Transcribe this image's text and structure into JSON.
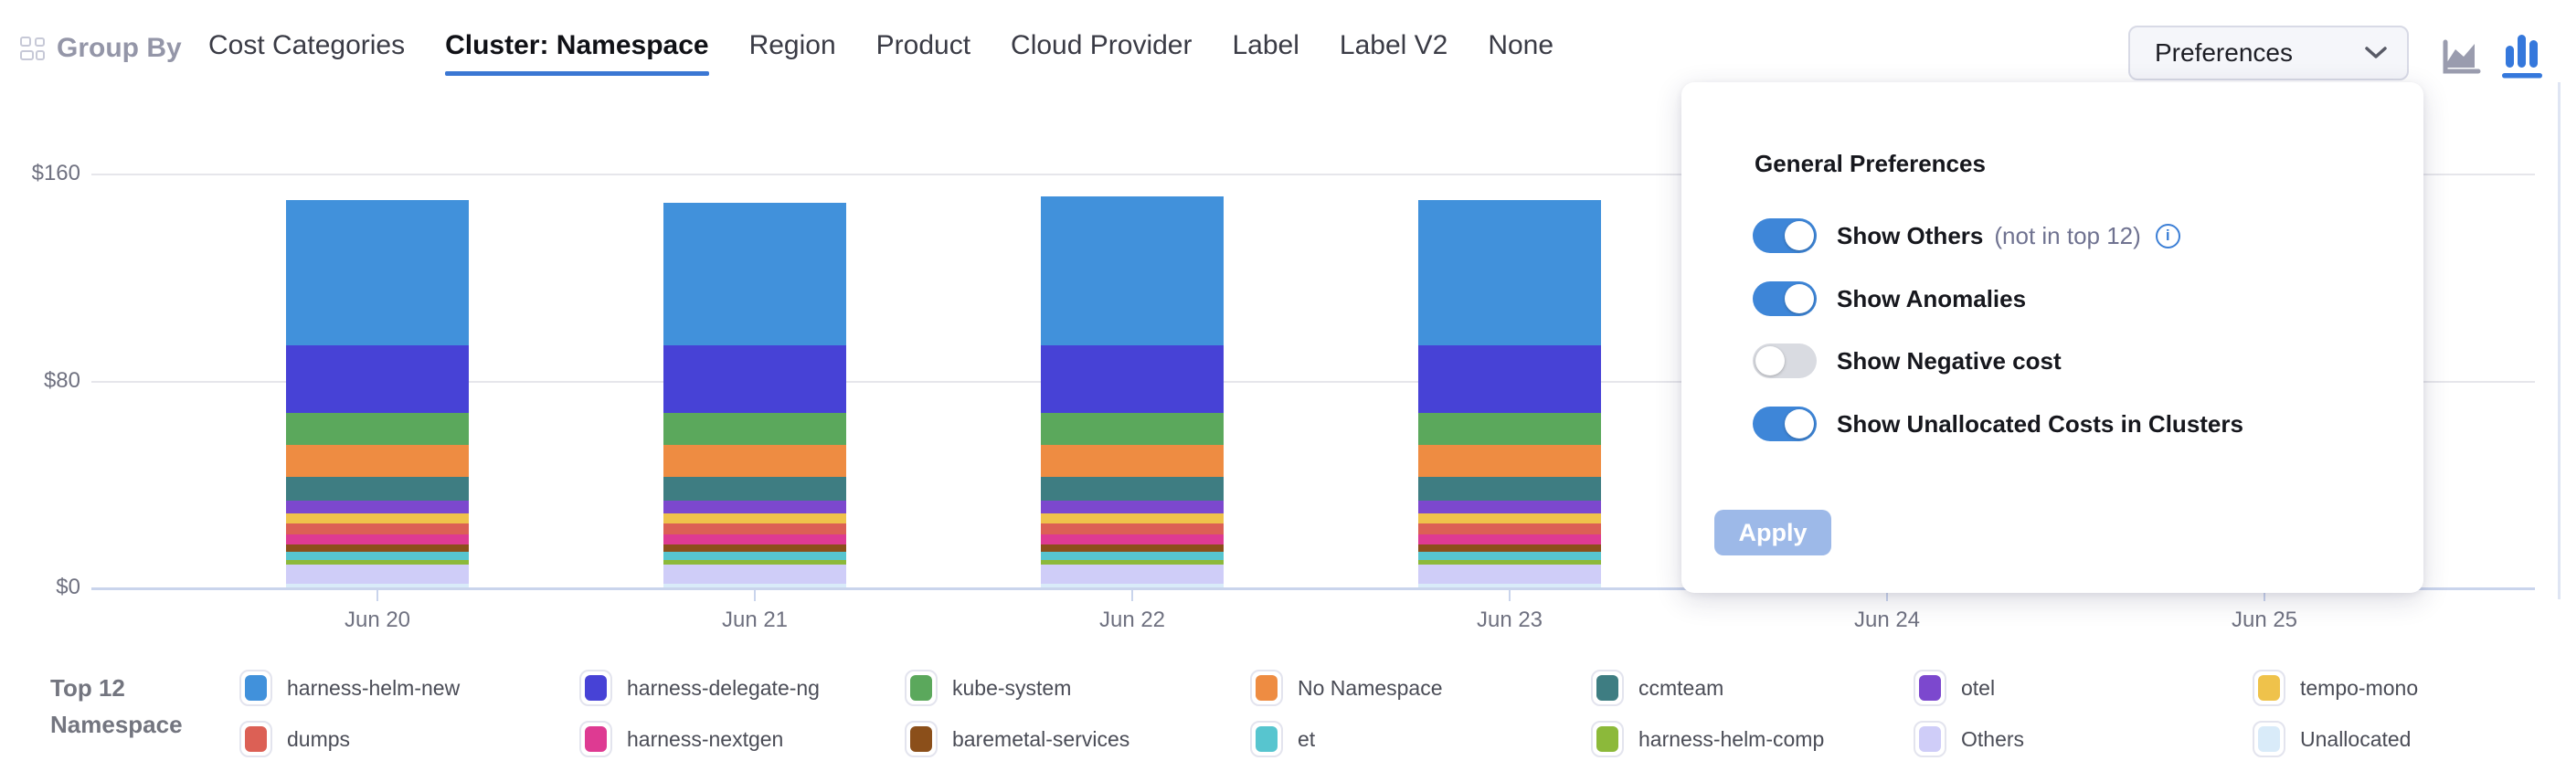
{
  "header": {
    "group_by_label": "Group By",
    "tabs": [
      "Cost Categories",
      "Cluster: Namespace",
      "Region",
      "Product",
      "Cloud Provider",
      "Label",
      "Label V2",
      "None"
    ],
    "active_tab": "Cluster: Namespace",
    "preferences_button_label": "Preferences",
    "chart_type_icons": [
      "area-chart",
      "bar-chart"
    ],
    "active_chart_type": "bar-chart"
  },
  "preferences_panel": {
    "title": "General Preferences",
    "toggles": [
      {
        "label": "Show Others",
        "suffix": "(not in top 12)",
        "has_info_icon": true,
        "state": "on"
      },
      {
        "label": "Show Anomalies",
        "suffix": "",
        "has_info_icon": false,
        "state": "on"
      },
      {
        "label": "Show Negative cost",
        "suffix": "",
        "has_info_icon": false,
        "state": "off"
      },
      {
        "label": "Show Unallocated Costs in Clusters",
        "suffix": "",
        "has_info_icon": false,
        "state": "on"
      }
    ],
    "apply_button_label": "Apply",
    "apply_disabled": true
  },
  "legend": {
    "title_line1": "Top 12",
    "title_line2": "Namespace",
    "columns": [
      [
        "harness-helm-new",
        "dumps"
      ],
      [
        "harness-delegate-ng",
        "harness-nextgen"
      ],
      [
        "kube-system",
        "baremetal-services"
      ],
      [
        "No Namespace",
        "et"
      ],
      [
        "ccmteam",
        "harness-helm-comp"
      ],
      [
        "otel",
        "Others"
      ],
      [
        "tempo-mono",
        "Unallocated"
      ]
    ]
  },
  "chart_data": {
    "type": "bar",
    "stacked": true,
    "title": "",
    "xlabel": "",
    "ylabel": "",
    "ylim": [
      0,
      160
    ],
    "yticks": [
      {
        "value": 0,
        "label": "$0"
      },
      {
        "value": 80,
        "label": "$80"
      },
      {
        "value": 160,
        "label": "$160"
      }
    ],
    "grid": true,
    "legend_position": "bottom",
    "categories": [
      "Jun 20",
      "Jun 21",
      "Jun 22",
      "Jun 23",
      "Jun 24",
      "Jun 25"
    ],
    "categories_with_visible_bars": [
      "Jun 20",
      "Jun 21",
      "Jun 22",
      "Jun 23"
    ],
    "note": "series listed top-of-stack first; values in USD estimated from $0-$160 axis; Jun 24 / Jun 25 slots are hidden behind the open Preferences panel",
    "series": [
      {
        "name": "harness-helm-new",
        "color": "#4191DB",
        "values": [
          56.0,
          55.0,
          57.5,
          56.0
        ]
      },
      {
        "name": "harness-delegate-ng",
        "color": "#4742D6",
        "values": [
          26.0,
          26.0,
          26.0,
          26.0
        ]
      },
      {
        "name": "kube-system",
        "color": "#5BA85C",
        "values": [
          12.4,
          12.4,
          12.4,
          12.4
        ]
      },
      {
        "name": "No Namespace",
        "color": "#EE8C42",
        "values": [
          12.4,
          12.4,
          12.4,
          12.4
        ]
      },
      {
        "name": "ccmteam",
        "color": "#3E7D82",
        "values": [
          9.2,
          9.2,
          9.2,
          9.2
        ]
      },
      {
        "name": "otel",
        "color": "#7C48CE",
        "values": [
          5.0,
          5.0,
          5.0,
          5.0
        ]
      },
      {
        "name": "tempo-mono",
        "color": "#EFC24B",
        "values": [
          3.9,
          3.9,
          3.9,
          3.9
        ]
      },
      {
        "name": "dumps",
        "color": "#DC6055",
        "values": [
          4.2,
          4.2,
          4.2,
          4.2
        ]
      },
      {
        "name": "harness-nextgen",
        "color": "#DE3A92",
        "values": [
          3.9,
          3.9,
          3.9,
          3.9
        ]
      },
      {
        "name": "baremetal-services",
        "color": "#8B4F1A",
        "values": [
          2.8,
          2.8,
          2.8,
          2.8
        ]
      },
      {
        "name": "et",
        "color": "#57C5CF",
        "values": [
          3.2,
          3.2,
          3.2,
          3.2
        ]
      },
      {
        "name": "harness-helm-comp",
        "color": "#8CB93A",
        "values": [
          1.8,
          1.8,
          1.8,
          1.8
        ]
      },
      {
        "name": "Others",
        "color": "#CFCDF8",
        "values": [
          7.4,
          7.4,
          7.4,
          7.4
        ]
      },
      {
        "name": "Unallocated",
        "color": "#D9EBF9",
        "values": [
          1.4,
          1.4,
          1.4,
          1.4
        ]
      }
    ]
  },
  "colors": {
    "active_tab_underline": "#3b77d3",
    "toggle_on": "#3e86d8",
    "toggle_off": "#d9dbe1",
    "apply_button_bg": "#9db9e8",
    "gridline": "#e6e6eb",
    "axis_line": "#c9d4ec",
    "active_chart_icon": "#3578dc",
    "inactive_chart_icon": "#9a9cae"
  }
}
